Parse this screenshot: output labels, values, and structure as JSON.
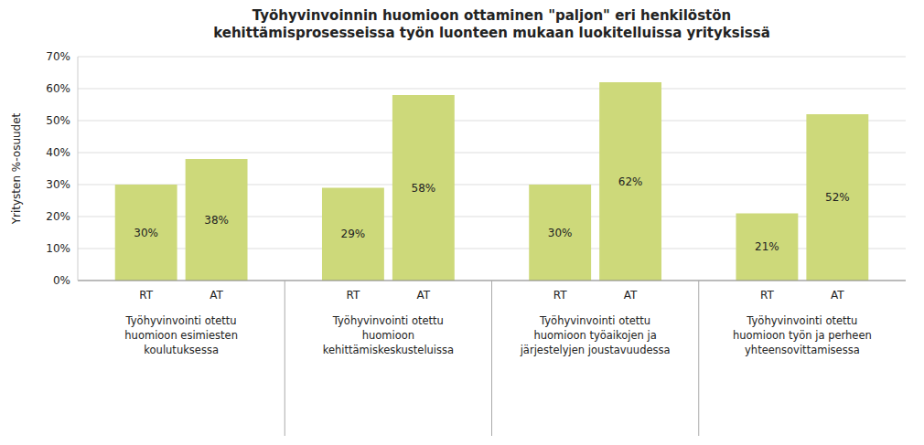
{
  "chart_data": {
    "type": "bar",
    "title": "Työhyvinvoinnin huomioon ottaminen \"paljon\" eri henkilöstön\nkehittämisprosesseissa työn luonteen mukaan luokitelluissa yrityksissä",
    "y_label": "Yritysten %-osuudet",
    "categories": [
      "Työhyvinvointi otettu\nhuomioon esimiesten\nkoulutuksessa",
      "Työhyvinvointi otettu\nhuomioon\nkehittämiskeskusteluissa",
      "Työhyvinvointi otettu\nhuomioon työaikojen ja\njärjestelyjen joustavuudessa",
      "Työhyvinvointi otettu\nhuomioon työn ja perheen\nyhteensovittamisessa"
    ],
    "series": [
      {
        "name": "RT",
        "color": "#cdd97a",
        "values": [
          30,
          29,
          30,
          21
        ],
        "value_labels": [
          "30%",
          "29%",
          "30%",
          "21%"
        ]
      },
      {
        "name": "AT",
        "color": "#cdd97a",
        "values": [
          38,
          58,
          62,
          52
        ],
        "value_labels": [
          "38%",
          "58%",
          "62%",
          "52%"
        ]
      }
    ],
    "ylim": [
      0,
      70
    ],
    "yticks": [
      {
        "value": 0,
        "label": "0%"
      },
      {
        "value": 10,
        "label": "10%"
      },
      {
        "value": 20,
        "label": "20%"
      },
      {
        "value": 30,
        "label": "30%"
      },
      {
        "value": 40,
        "label": "40%"
      },
      {
        "value": 50,
        "label": "50%"
      },
      {
        "value": 60,
        "label": "60%"
      },
      {
        "value": 70,
        "label": "70%"
      }
    ],
    "grid": true,
    "data_labels": true
  }
}
